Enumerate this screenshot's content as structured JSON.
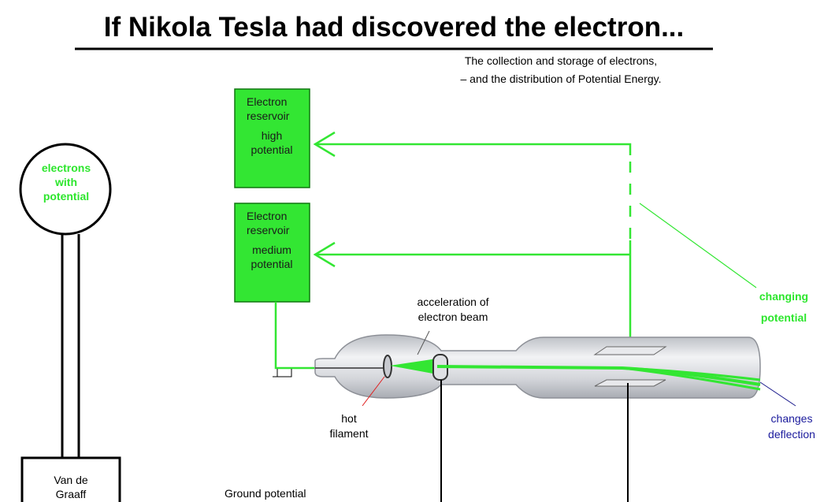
{
  "header": {
    "title": "If Nikola Tesla had discovered the electron...",
    "subtitle": [
      "The collection and storage of electrons,",
      "– and the distribution of Potential Energy."
    ]
  },
  "nodes": [
    {
      "id": "sphere",
      "label": [
        "electrons",
        "with",
        "potential"
      ]
    },
    {
      "id": "reservoir-high",
      "label": [
        "Electron",
        "reservoir",
        "high",
        "potential"
      ]
    },
    {
      "id": "reservoir-medium",
      "label": [
        "Electron",
        "reservoir",
        "medium",
        "potential"
      ]
    },
    {
      "id": "generator",
      "label": [
        "Van de",
        "Graaff"
      ]
    }
  ],
  "annotations": [
    {
      "id": "acceleration",
      "label": [
        "acceleration of",
        "electron beam"
      ]
    },
    {
      "id": "changing",
      "label": [
        "changing",
        "potential"
      ]
    },
    {
      "id": "filament",
      "label": [
        "hot",
        "filament"
      ]
    },
    {
      "id": "deflection",
      "label": [
        "changes",
        "deflection"
      ]
    },
    {
      "id": "ground",
      "label": [
        "Ground potential"
      ]
    }
  ]
}
